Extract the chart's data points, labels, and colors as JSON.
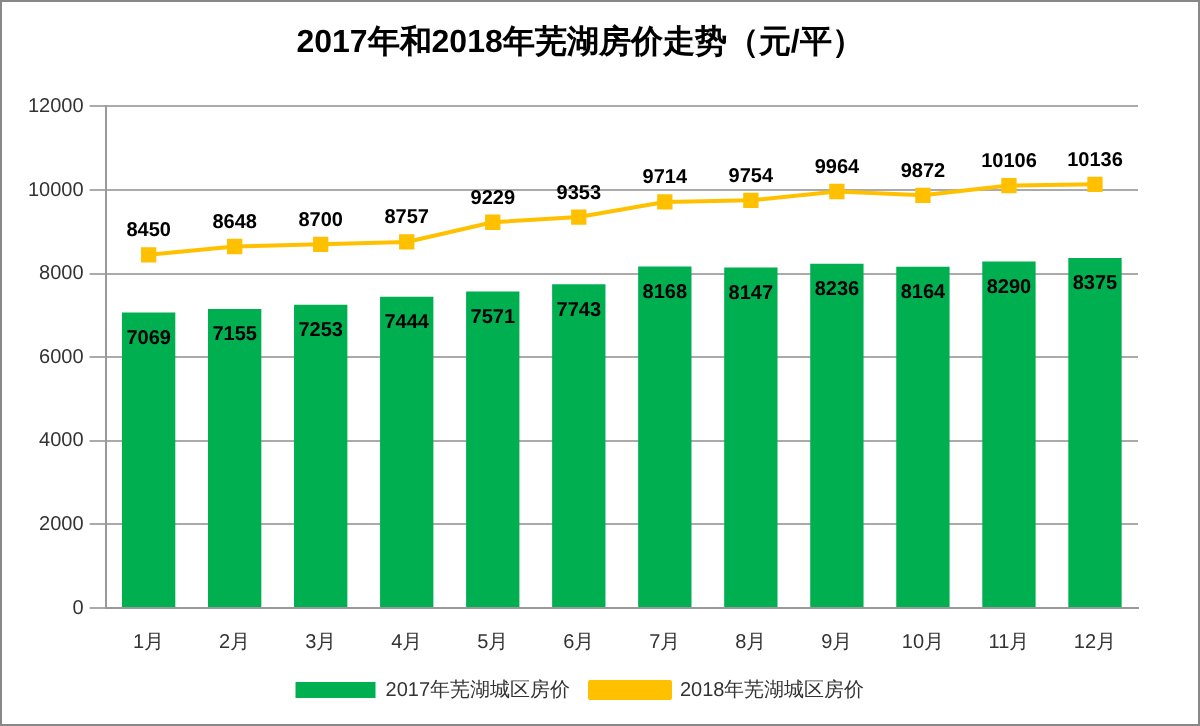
{
  "chart_data": {
    "type": "bar",
    "title": "2017年和2018年芜湖房价走势（元/平）",
    "categories": [
      "1月",
      "2月",
      "3月",
      "4月",
      "5月",
      "6月",
      "7月",
      "8月",
      "9月",
      "10月",
      "11月",
      "12月"
    ],
    "series": [
      {
        "name": "2017年芜湖城区房价",
        "color": "#00b050",
        "values": [
          7069,
          7155,
          7253,
          7444,
          7571,
          7743,
          8168,
          8147,
          8236,
          8164,
          8290,
          8375
        ]
      },
      {
        "name": "2018年芜湖城区房价",
        "type": "line",
        "color": "#ffc000",
        "values": [
          8450,
          8648,
          8700,
          8757,
          9229,
          9353,
          9714,
          9754,
          9964,
          9872,
          10106,
          10136
        ]
      }
    ],
    "ylim": [
      0,
      12000
    ],
    "yticks": [
      0,
      2000,
      4000,
      6000,
      8000,
      10000,
      12000
    ],
    "grid": "y",
    "legend": "bottom",
    "marker": "square",
    "data_labels": true
  }
}
